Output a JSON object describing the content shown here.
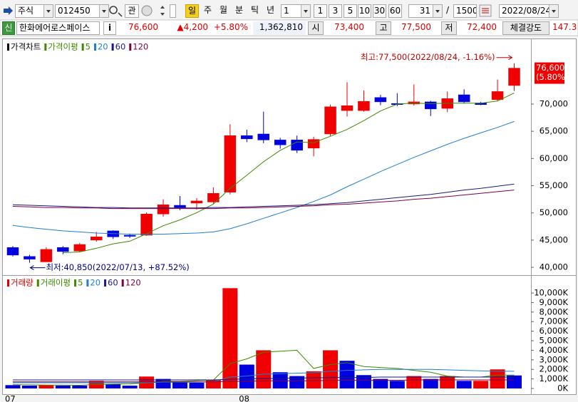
{
  "toolbar": {
    "market": "주식",
    "code": "012450",
    "watch": "관",
    "periods": [
      "일",
      "주",
      "월",
      "분",
      "틱",
      "년"
    ],
    "unit": "1",
    "intervals": [
      "1",
      "3",
      "5",
      "10",
      "30",
      "60"
    ],
    "count": "31",
    "separator": "/",
    "total": "1500",
    "date": "2022/08/24"
  },
  "info_bar": {
    "badge": "신",
    "name": "한화에어로스페이스",
    "info": "i",
    "price": "76,600",
    "change": "▲4,200",
    "change_rate": "+5.80%",
    "volume": "1,362,810",
    "open_label": "시",
    "open": "73,400",
    "high_label": "고",
    "high": "77,500",
    "low_label": "저",
    "low": "72,400",
    "strength_label": "체결강도",
    "strength": "147.3"
  },
  "chart_data": [
    {
      "type": "candlestick",
      "legend_title": "가격차트",
      "title_color": "#000000",
      "ma_title": "가격이평",
      "up_color": "#f00000",
      "down_color": "#0000e0",
      "open": [
        43650,
        42000,
        41000,
        43650,
        43000,
        45000,
        46700,
        45900,
        45900,
        49800,
        51400,
        51800,
        52000,
        53800,
        64200,
        64500,
        63400,
        63400,
        61900,
        64500,
        68800,
        68800,
        71200,
        70100,
        70000,
        70400,
        69200,
        71700,
        70200,
        70800,
        73400
      ],
      "high": [
        43900,
        42300,
        43700,
        43900,
        44500,
        46500,
        46800,
        46200,
        50100,
        52500,
        53100,
        52700,
        54700,
        66300,
        65300,
        68600,
        63800,
        64200,
        64000,
        69900,
        74000,
        72500,
        71700,
        72000,
        73600,
        70600,
        72300,
        72700,
        70400,
        74500,
        77500
      ],
      "low": [
        42000,
        40850,
        41000,
        42400,
        42800,
        44700,
        45200,
        45400,
        45800,
        49300,
        50500,
        50600,
        51700,
        53400,
        63000,
        62800,
        61800,
        61000,
        60400,
        64100,
        67700,
        68600,
        69800,
        69600,
        69700,
        67800,
        68500,
        70100,
        69800,
        70600,
        72400
      ],
      "close": [
        42250,
        41500,
        43300,
        42900,
        44200,
        45600,
        45600,
        45700,
        49800,
        51500,
        51000,
        52200,
        53600,
        64200,
        63600,
        63400,
        62500,
        61500,
        63500,
        69500,
        69700,
        70500,
        70400,
        69900,
        70400,
        69100,
        71000,
        70400,
        69900,
        72300,
        76600
      ],
      "series": [
        {
          "name": "5",
          "color": "#3d8a00",
          "values": [
            null,
            null,
            null,
            42700,
            42830,
            43500,
            44320,
            44800,
            46180,
            47640,
            48720,
            50040,
            51620,
            54500,
            56920,
            59400,
            61500,
            63040,
            62900,
            64080,
            65340,
            66940,
            68720,
            70000,
            70180,
            70060,
            70160,
            70160,
            70160,
            70540,
            72040
          ]
        },
        {
          "name": "20",
          "color": "#1f7fd0",
          "values": [
            47700,
            47300,
            47000,
            46700,
            46500,
            46300,
            46200,
            46100,
            46100,
            46100,
            46200,
            46300,
            46500,
            47100,
            48000,
            49000,
            50000,
            51000,
            52100,
            53300,
            54800,
            56200,
            57600,
            58900,
            60200,
            61400,
            62600,
            63700,
            64700,
            65700,
            66800
          ]
        },
        {
          "name": "60",
          "color": "#1a1a80",
          "values": [
            51500,
            51400,
            51300,
            51200,
            51100,
            51000,
            51000,
            50900,
            50900,
            50900,
            50900,
            50900,
            51000,
            51000,
            51100,
            51200,
            51300,
            51400,
            51500,
            51700,
            51900,
            52200,
            52500,
            52800,
            53100,
            53400,
            53800,
            54200,
            54500,
            54900,
            55300
          ]
        },
        {
          "name": "120",
          "color": "#800040",
          "values": [
            51200,
            51100,
            51000,
            51000,
            50900,
            50900,
            50800,
            50800,
            50800,
            50800,
            50800,
            50800,
            50800,
            50900,
            50900,
            51000,
            51100,
            51200,
            51300,
            51500,
            51600,
            51800,
            52000,
            52200,
            52500,
            52700,
            53000,
            53300,
            53600,
            53900,
            54200
          ]
        }
      ],
      "ylim": [
        38700,
        81650
      ],
      "yticks": [
        {
          "value": 40000,
          "label": "40,000"
        },
        {
          "value": 45000,
          "label": "45,000"
        },
        {
          "value": 50000,
          "label": "50,000"
        },
        {
          "value": 55000,
          "label": "55,000"
        },
        {
          "value": 60000,
          "label": "60,000"
        },
        {
          "value": 65000,
          "label": "65,000"
        },
        {
          "value": 70000,
          "label": "70,000"
        }
      ],
      "high_note": "최고:77,500(2022/08/24, -1.16%)",
      "high_note_color": "#c00000",
      "low_note": "최저:40,850(2022/07/13, +87.52%)",
      "low_note_color": "#000080",
      "last_price_label": "76,600",
      "last_change_label": "(5.80%)"
    },
    {
      "type": "bar",
      "legend_title": "거래량",
      "title_color": "#e00000",
      "ma_title": "거래이평",
      "categories": [
        "07",
        null,
        null,
        null,
        null,
        null,
        null,
        null,
        null,
        null,
        null,
        null,
        null,
        null,
        "08",
        null,
        null,
        null,
        null,
        null,
        null,
        null,
        null,
        null,
        null,
        null,
        null,
        null,
        null,
        null,
        null
      ],
      "values": [
        350,
        300,
        350,
        300,
        300,
        800,
        450,
        300,
        1250,
        1000,
        700,
        600,
        900,
        10500,
        2500,
        4000,
        1700,
        1300,
        1800,
        4000,
        2900,
        1400,
        1000,
        800,
        1300,
        1000,
        1300,
        800,
        800,
        2000,
        1363
      ],
      "colors": [
        "#0000e0",
        "#0000e0",
        "#f00000",
        "#0000e0",
        "#0000e0",
        "#f00000",
        "#0000e0",
        "#0000e0",
        "#f00000",
        "#0000e0",
        "#0000e0",
        "#0000e0",
        "#f00000",
        "#f00000",
        "#0000e0",
        "#f00000",
        "#0000e0",
        "#0000e0",
        "#f00000",
        "#f00000",
        "#0000e0",
        "#0000e0",
        "#0000e0",
        "#0000e0",
        "#f00000",
        "#0000e0",
        "#f00000",
        "#0000e0",
        "#f00000",
        "#f00000",
        "#0000e0"
      ],
      "series": [
        {
          "name": "5",
          "color": "#3d8a00",
          "values": [
            400,
            380,
            360,
            350,
            340,
            420,
            460,
            480,
            600,
            750,
            740,
            820,
            880,
            2600,
            3100,
            3800,
            3900,
            4000,
            2100,
            2500,
            2700,
            2300,
            2200,
            2100,
            1900,
            1700,
            1300,
            1200,
            1200,
            1400,
            1400
          ]
        },
        {
          "name": "20",
          "color": "#1f7fd0",
          "values": [
            600,
            600,
            600,
            600,
            600,
            600,
            600,
            600,
            600,
            650,
            650,
            650,
            700,
            1200,
            1300,
            1500,
            1550,
            1600,
            1650,
            1800,
            1900,
            1950,
            2000,
            2000,
            2000,
            2000,
            1950,
            1900,
            1850,
            1800,
            1800
          ]
        },
        {
          "name": "60",
          "color": "#1a1a80",
          "values": [
            900,
            900,
            900,
            900,
            900,
            900,
            900,
            900,
            900,
            900,
            900,
            900,
            900,
            950,
            1000,
            1050,
            1050,
            1100,
            1100,
            1150,
            1150,
            1150,
            1200,
            1200,
            1200,
            1200,
            1200,
            1200,
            1200,
            1200,
            1200
          ]
        },
        {
          "name": "120",
          "color": "#800040",
          "values": [
            700,
            700,
            700,
            700,
            700,
            700,
            700,
            700,
            700,
            700,
            700,
            700,
            700,
            750,
            750,
            800,
            800,
            800,
            800,
            850,
            850,
            850,
            850,
            850,
            900,
            900,
            900,
            900,
            900,
            900,
            900
          ]
        }
      ],
      "ylim": [
        -520,
        11420
      ],
      "yticks": [
        {
          "value": 0,
          "label": "0K"
        },
        {
          "value": 1000,
          "label": "1,000K"
        },
        {
          "value": 2000,
          "label": "2,000K"
        },
        {
          "value": 3000,
          "label": "3,000K"
        },
        {
          "value": 4000,
          "label": "4,000K"
        },
        {
          "value": 5000,
          "label": "5,000K"
        },
        {
          "value": 6000,
          "label": "6,000K"
        },
        {
          "value": 7000,
          "label": "7,000K"
        },
        {
          "value": 8000,
          "label": "8,000K"
        },
        {
          "value": 9000,
          "label": "9,000K"
        },
        {
          "value": 10000,
          "label": "10,000K"
        }
      ]
    }
  ]
}
